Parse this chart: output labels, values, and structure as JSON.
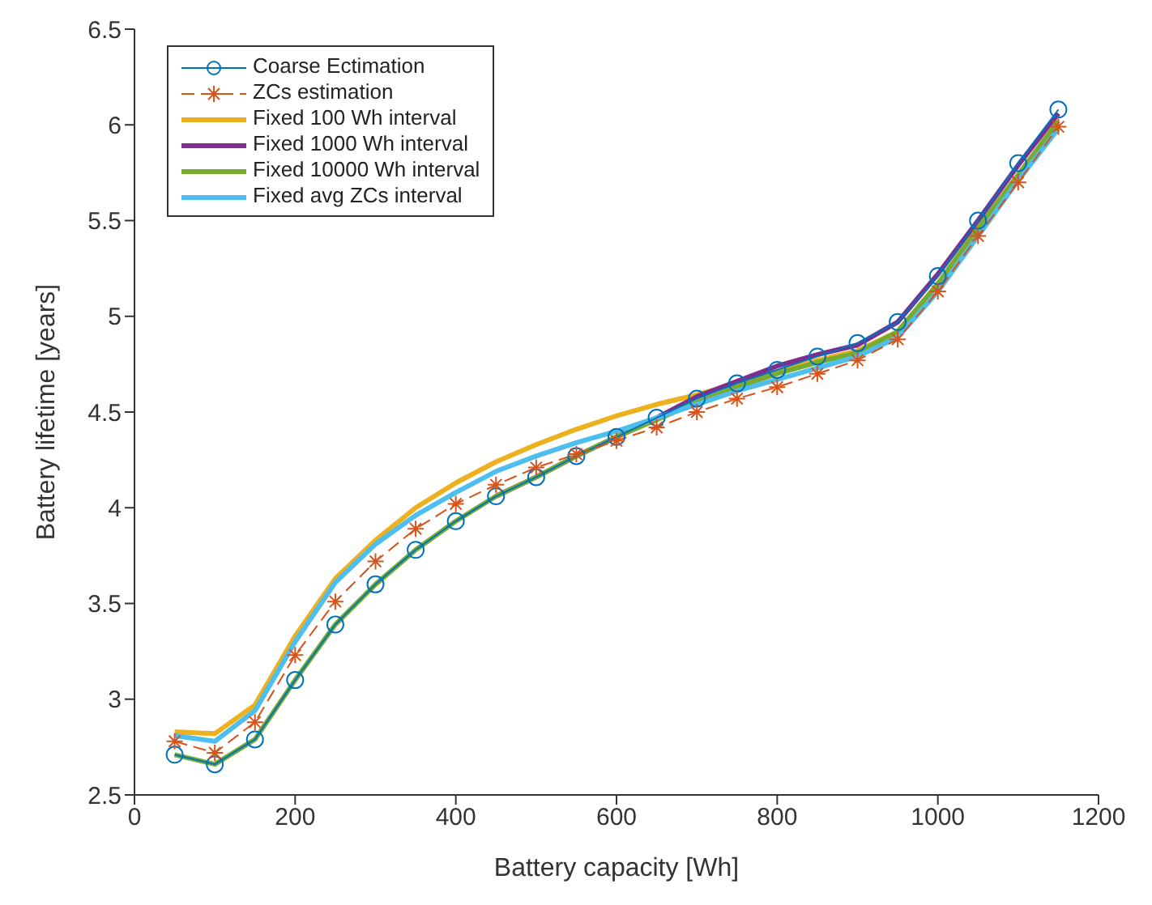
{
  "chart_data": {
    "type": "line",
    "xlabel": "Battery capacity [Wh]",
    "ylabel": "Battery lifetime  [years]",
    "x": [
      50,
      100,
      150,
      200,
      250,
      300,
      350,
      400,
      450,
      500,
      550,
      600,
      650,
      700,
      750,
      800,
      850,
      900,
      950,
      1000,
      1050,
      1100,
      1150
    ],
    "series": [
      {
        "name": "Coarse Ectimation",
        "color": "#0072bd",
        "marker": "circle",
        "line_style": "solid",
        "values": [
          2.71,
          2.66,
          2.79,
          3.1,
          3.39,
          3.6,
          3.78,
          3.93,
          4.06,
          4.16,
          4.27,
          4.37,
          4.47,
          4.57,
          4.65,
          4.72,
          4.79,
          4.86,
          4.97,
          5.21,
          5.5,
          5.8,
          6.08
        ]
      },
      {
        "name": "ZCs estimation",
        "color": "#d95319",
        "marker": "cross",
        "line_style": "dashed",
        "values": [
          2.78,
          2.72,
          2.88,
          3.23,
          3.51,
          3.72,
          3.89,
          4.02,
          4.12,
          4.21,
          4.28,
          4.35,
          4.42,
          4.5,
          4.57,
          4.63,
          4.7,
          4.77,
          4.88,
          5.13,
          5.42,
          5.7,
          5.99
        ]
      },
      {
        "name": "Fixed 100 Wh interval",
        "color": "#edb120",
        "marker": "none",
        "line_style": "solid",
        "values": [
          2.83,
          2.82,
          2.97,
          3.33,
          3.63,
          3.83,
          4.0,
          4.13,
          4.24,
          4.33,
          4.41,
          4.48,
          4.54,
          4.59,
          4.65,
          4.71,
          4.77,
          4.82,
          4.92,
          5.16,
          null,
          null,
          null
        ]
      },
      {
        "name": "Fixed 1000 Wh interval",
        "color": "#7e2f8e",
        "marker": "none",
        "line_style": "solid",
        "values": [
          null,
          null,
          null,
          null,
          null,
          null,
          null,
          null,
          4.06,
          4.16,
          4.27,
          4.37,
          4.47,
          4.58,
          4.66,
          4.74,
          4.8,
          4.85,
          4.97,
          5.22,
          5.5,
          5.79,
          6.06
        ]
      },
      {
        "name": "Fixed 10000 Wh interval",
        "color": "#77ac30",
        "marker": "none",
        "line_style": "solid",
        "values": [
          2.71,
          2.66,
          2.79,
          3.1,
          3.39,
          3.6,
          3.78,
          3.93,
          4.06,
          4.16,
          4.27,
          4.37,
          4.46,
          4.55,
          4.63,
          4.7,
          4.76,
          4.81,
          4.92,
          5.17,
          5.46,
          5.74,
          6.02
        ]
      },
      {
        "name": "Fixed avg ZCs interval",
        "color": "#4dbeee",
        "marker": "none",
        "line_style": "solid",
        "values": [
          2.81,
          2.78,
          2.94,
          3.3,
          3.61,
          3.81,
          3.96,
          4.08,
          4.19,
          4.27,
          4.34,
          4.4,
          4.47,
          4.54,
          4.61,
          4.67,
          4.73,
          4.79,
          4.89,
          5.13,
          5.42,
          5.71,
          5.98
        ]
      }
    ],
    "xlim": [
      0,
      1200
    ],
    "xticks": [
      0,
      200,
      400,
      600,
      800,
      1000,
      1200
    ],
    "ylim": [
      2.5,
      6.5
    ],
    "yticks": [
      2.5,
      3,
      3.5,
      4,
      4.5,
      5,
      5.5,
      6,
      6.5
    ],
    "grid": false,
    "legend": "top left"
  }
}
